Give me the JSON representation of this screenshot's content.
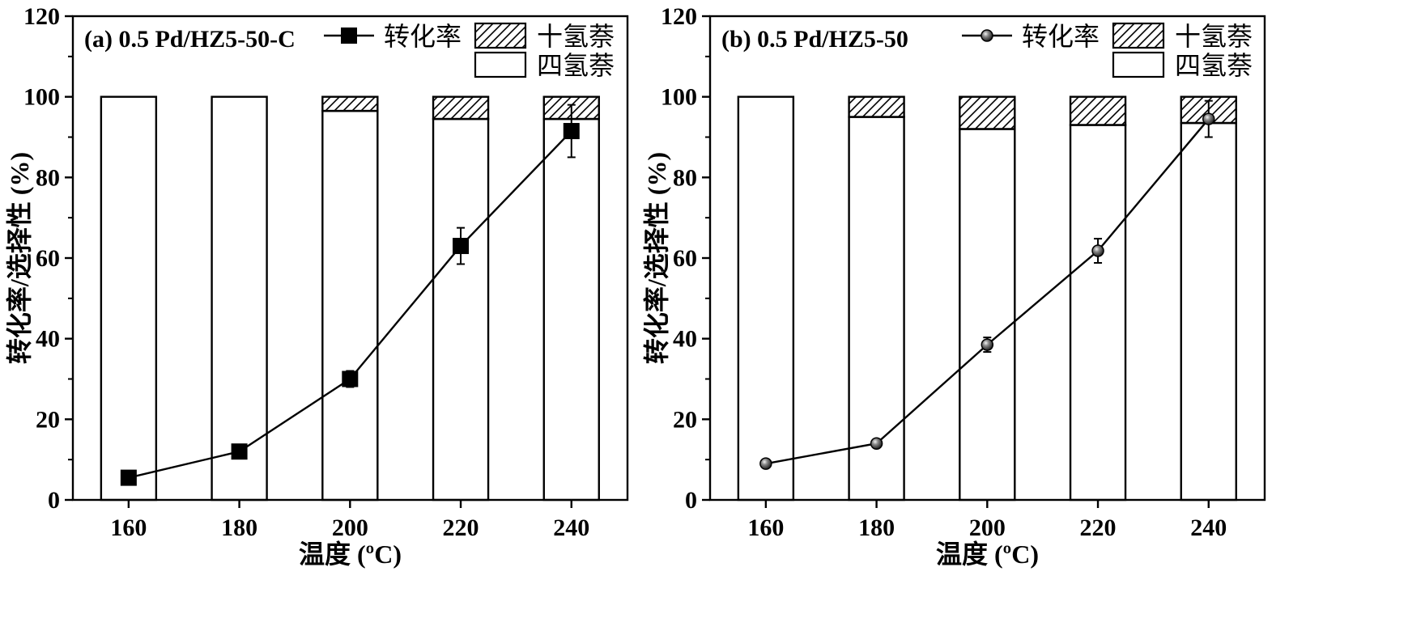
{
  "chart_data": [
    {
      "type": "bar",
      "title": "(a) 0.5 Pd/HZ5-50-C",
      "xlabel": "温度 (ºC)",
      "ylabel": "转化率/选择性 (%)",
      "categories": [
        "160",
        "180",
        "200",
        "220",
        "240"
      ],
      "ylim": [
        0,
        120
      ],
      "yticks": [
        0,
        20,
        40,
        60,
        80,
        100,
        120
      ],
      "stacked": true,
      "series": [
        {
          "name": "四氢萘",
          "kind": "bar",
          "pattern": "empty",
          "values": [
            100,
            100,
            96.5,
            94.5,
            94.5
          ]
        },
        {
          "name": "十氢萘",
          "kind": "bar",
          "pattern": "hatched",
          "values": [
            0,
            0,
            3.5,
            5.5,
            5.5
          ]
        },
        {
          "name": "转化率",
          "kind": "line",
          "marker": "filled-square",
          "values": [
            5.5,
            12,
            30,
            63,
            91.5
          ],
          "errors": [
            0,
            0,
            2,
            4.5,
            6.5
          ]
        }
      ]
    },
    {
      "type": "bar",
      "title": "(b) 0.5 Pd/HZ5-50",
      "xlabel": "温度 (ºC)",
      "ylabel": "转化率/选择性 (%)",
      "categories": [
        "160",
        "180",
        "200",
        "220",
        "240"
      ],
      "ylim": [
        0,
        120
      ],
      "yticks": [
        0,
        20,
        40,
        60,
        80,
        100,
        120
      ],
      "stacked": true,
      "series": [
        {
          "name": "四氢萘",
          "kind": "bar",
          "pattern": "empty",
          "values": [
            100,
            95,
            92,
            93,
            93.5
          ]
        },
        {
          "name": "十氢萘",
          "kind": "bar",
          "pattern": "hatched",
          "values": [
            0,
            5,
            8,
            7,
            6.5
          ]
        },
        {
          "name": "转化率",
          "kind": "line",
          "marker": "sphere",
          "values": [
            9,
            14,
            38.5,
            61.8,
            94.5
          ],
          "errors": [
            0,
            0,
            1.8,
            3,
            4.5
          ]
        }
      ]
    }
  ]
}
